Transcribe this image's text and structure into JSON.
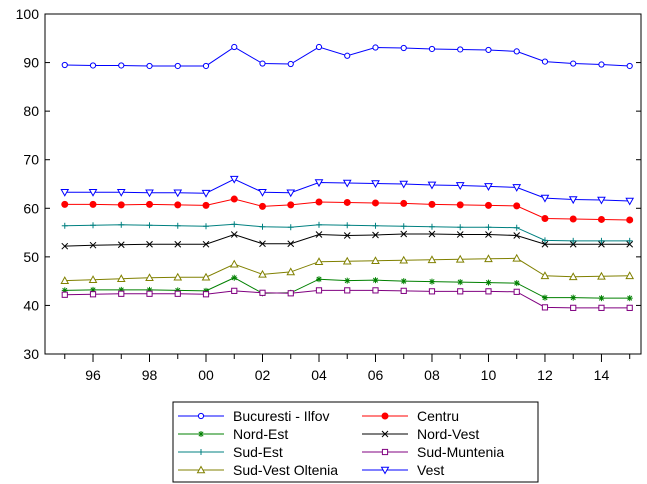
{
  "chart_data": {
    "type": "line",
    "title": "",
    "xlabel": "",
    "ylabel": "",
    "x": [
      1995,
      1996,
      1997,
      1998,
      1999,
      2000,
      2001,
      2002,
      2003,
      2004,
      2005,
      2006,
      2007,
      2008,
      2009,
      2010,
      2011,
      2012,
      2013,
      2014,
      2015
    ],
    "xlim": [
      1994.3,
      2015.4
    ],
    "ylim": [
      30,
      100
    ],
    "x_ticks": [
      1996,
      1998,
      2000,
      2002,
      2004,
      2006,
      2008,
      2010,
      2012,
      2014
    ],
    "x_tick_labels": [
      "96",
      "98",
      "00",
      "02",
      "04",
      "06",
      "08",
      "10",
      "12",
      "14"
    ],
    "y_ticks": [
      30,
      40,
      50,
      60,
      70,
      80,
      90,
      100
    ],
    "y_tick_labels": [
      "30",
      "40",
      "50",
      "60",
      "70",
      "80",
      "90",
      "100"
    ],
    "grid": false,
    "legend_position": "bottom",
    "series": [
      {
        "name": "Bucuresti - Ilfov",
        "color": "#0000ff",
        "marker": "circle",
        "values": [
          89.5,
          89.4,
          89.4,
          89.3,
          89.3,
          89.3,
          93.2,
          89.8,
          89.7,
          93.2,
          91.4,
          93.1,
          93.0,
          92.8,
          92.7,
          92.6,
          92.3,
          90.2,
          89.8,
          89.6,
          89.3
        ]
      },
      {
        "name": "Centru",
        "color": "#ff0000",
        "marker": "dot",
        "values": [
          60.8,
          60.8,
          60.7,
          60.8,
          60.7,
          60.6,
          61.9,
          60.4,
          60.7,
          61.3,
          61.2,
          61.1,
          61.0,
          60.8,
          60.7,
          60.6,
          60.5,
          57.9,
          57.8,
          57.7,
          57.6
        ]
      },
      {
        "name": "Nord-Est",
        "color": "#008000",
        "marker": "asterisk",
        "values": [
          43.1,
          43.2,
          43.2,
          43.2,
          43.1,
          43.0,
          45.7,
          42.5,
          42.6,
          45.4,
          45.1,
          45.2,
          45.0,
          44.9,
          44.8,
          44.7,
          44.6,
          41.6,
          41.6,
          41.5,
          41.5
        ]
      },
      {
        "name": "Nord-Vest",
        "color": "#000000",
        "marker": "x",
        "values": [
          52.2,
          52.4,
          52.5,
          52.6,
          52.6,
          52.6,
          54.6,
          52.7,
          52.7,
          54.6,
          54.4,
          54.5,
          54.7,
          54.7,
          54.6,
          54.6,
          54.4,
          52.6,
          52.6,
          52.6,
          52.6
        ]
      },
      {
        "name": "Sud-Est",
        "color": "#008080",
        "marker": "plus",
        "values": [
          56.4,
          56.5,
          56.6,
          56.5,
          56.4,
          56.3,
          56.7,
          56.2,
          56.1,
          56.6,
          56.5,
          56.4,
          56.3,
          56.2,
          56.1,
          56.1,
          56.0,
          53.4,
          53.3,
          53.3,
          53.3
        ]
      },
      {
        "name": "Sud-Muntenia",
        "color": "#800080",
        "marker": "square",
        "values": [
          42.2,
          42.3,
          42.4,
          42.4,
          42.4,
          42.3,
          43.0,
          42.6,
          42.5,
          43.1,
          43.1,
          43.1,
          43.0,
          42.9,
          42.9,
          42.9,
          42.8,
          39.6,
          39.5,
          39.5,
          39.5
        ]
      },
      {
        "name": "Sud-Vest Oltenia",
        "color": "#808000",
        "marker": "triangle",
        "values": [
          45.1,
          45.3,
          45.5,
          45.7,
          45.8,
          45.8,
          48.5,
          46.4,
          46.9,
          49.0,
          49.1,
          49.2,
          49.3,
          49.4,
          49.5,
          49.6,
          49.7,
          46.1,
          45.9,
          46.0,
          46.1
        ]
      },
      {
        "name": "Vest",
        "color": "#0000ff",
        "marker": "triangle-down",
        "values": [
          63.3,
          63.3,
          63.3,
          63.2,
          63.2,
          63.1,
          66.0,
          63.3,
          63.2,
          65.3,
          65.2,
          65.1,
          65.0,
          64.8,
          64.7,
          64.5,
          64.3,
          62.1,
          61.8,
          61.7,
          61.5
        ]
      }
    ]
  }
}
